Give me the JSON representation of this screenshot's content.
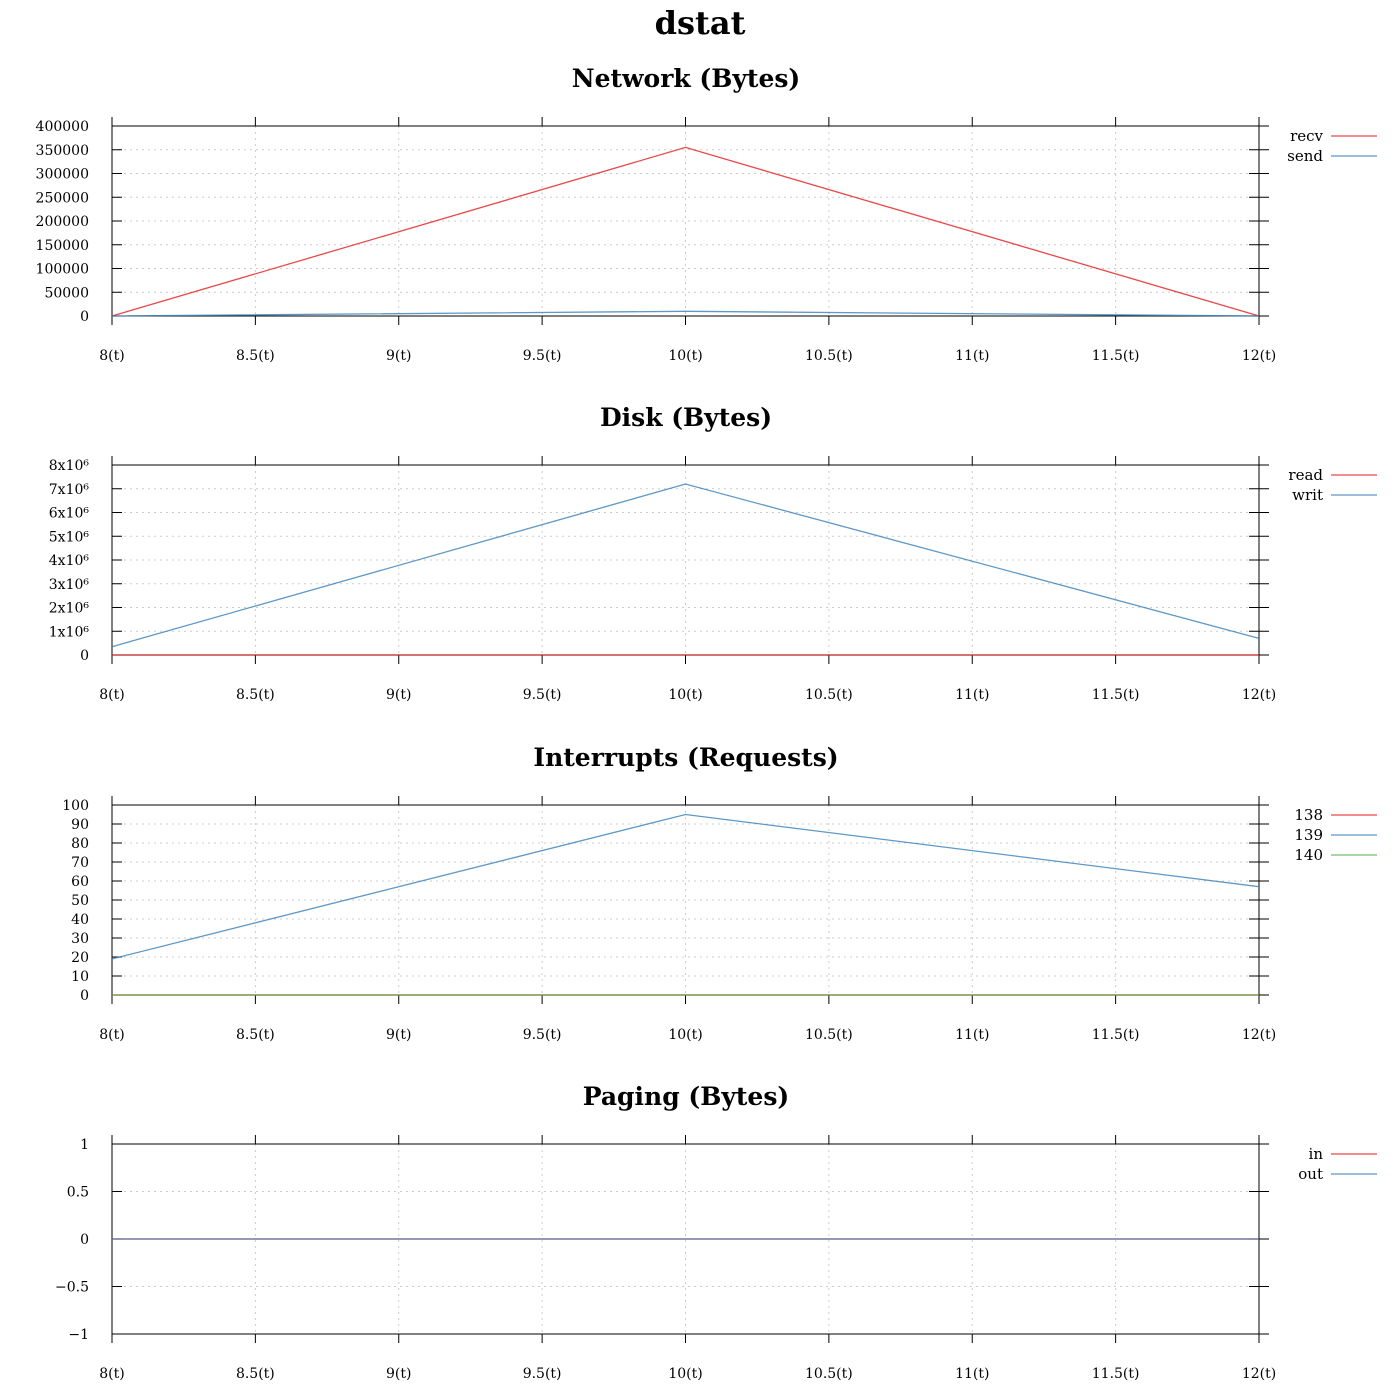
{
  "page": {
    "title": "dstat"
  },
  "colors": {
    "red": "#e41a1c",
    "blue": "#377eb8",
    "green": "#4daf4a",
    "grid": "#cccccc",
    "axis": "#000000"
  },
  "chart_data": [
    {
      "type": "line",
      "title": "Network (Bytes)",
      "xlabel": "",
      "ylabel": "",
      "x": [
        8,
        10,
        12
      ],
      "x_ticks": [
        "8(t)",
        "8.5(t)",
        "9(t)",
        "9.5(t)",
        "10(t)",
        "10.5(t)",
        "11(t)",
        "11.5(t)",
        "12(t)"
      ],
      "xlim": [
        8,
        12
      ],
      "ylim": [
        0,
        400000
      ],
      "y_ticks": [
        "0",
        "50000",
        "100000",
        "150000",
        "200000",
        "250000",
        "300000",
        "350000",
        "400000"
      ],
      "grid": true,
      "legend_position": "right",
      "series": [
        {
          "name": "recv",
          "color": "#e41a1c",
          "values": [
            0,
            355000,
            0
          ]
        },
        {
          "name": "send",
          "color": "#377eb8",
          "values": [
            0,
            10000,
            0
          ]
        }
      ]
    },
    {
      "type": "line",
      "title": "Disk (Bytes)",
      "xlabel": "",
      "ylabel": "",
      "x": [
        8,
        10,
        12
      ],
      "x_ticks": [
        "8(t)",
        "8.5(t)",
        "9(t)",
        "9.5(t)",
        "10(t)",
        "10.5(t)",
        "11(t)",
        "11.5(t)",
        "12(t)"
      ],
      "xlim": [
        8,
        12
      ],
      "ylim": [
        0,
        8000000
      ],
      "y_ticks": [
        "0",
        "1x10⁶",
        "2x10⁶",
        "3x10⁶",
        "4x10⁶",
        "5x10⁶",
        "6x10⁶",
        "7x10⁶",
        "8x10⁶"
      ],
      "grid": true,
      "legend_position": "right",
      "series": [
        {
          "name": "read",
          "color": "#e41a1c",
          "values": [
            0,
            0,
            0
          ]
        },
        {
          "name": "writ",
          "color": "#377eb8",
          "values": [
            350000,
            7200000,
            700000
          ]
        }
      ]
    },
    {
      "type": "line",
      "title": "Interrupts (Requests)",
      "xlabel": "",
      "ylabel": "",
      "x": [
        8,
        10,
        12
      ],
      "x_ticks": [
        "8(t)",
        "8.5(t)",
        "9(t)",
        "9.5(t)",
        "10(t)",
        "10.5(t)",
        "11(t)",
        "11.5(t)",
        "12(t)"
      ],
      "xlim": [
        8,
        12
      ],
      "ylim": [
        0,
        100
      ],
      "y_ticks": [
        "0",
        "10",
        "20",
        "30",
        "40",
        "50",
        "60",
        "70",
        "80",
        "90",
        "100"
      ],
      "grid": true,
      "legend_position": "right",
      "series": [
        {
          "name": "138",
          "color": "#e41a1c",
          "values": [
            0,
            0,
            0
          ]
        },
        {
          "name": "139",
          "color": "#377eb8",
          "values": [
            19,
            95,
            57
          ]
        },
        {
          "name": "140",
          "color": "#4daf4a",
          "values": [
            0,
            0,
            0
          ]
        }
      ]
    },
    {
      "type": "line",
      "title": "Paging (Bytes)",
      "xlabel": "",
      "ylabel": "",
      "x": [
        8,
        10,
        12
      ],
      "x_ticks": [
        "8(t)",
        "8.5(t)",
        "9(t)",
        "9.5(t)",
        "10(t)",
        "10.5(t)",
        "11(t)",
        "11.5(t)",
        "12(t)"
      ],
      "xlim": [
        8,
        12
      ],
      "ylim": [
        -1,
        1
      ],
      "y_ticks": [
        "-1",
        "-0.5",
        "0",
        "0.5",
        "1"
      ],
      "grid": true,
      "legend_position": "right",
      "series": [
        {
          "name": "in",
          "color": "#e41a1c",
          "values": [
            0,
            0,
            0
          ]
        },
        {
          "name": "out",
          "color": "#377eb8",
          "values": [
            0,
            0,
            0
          ]
        }
      ]
    }
  ]
}
